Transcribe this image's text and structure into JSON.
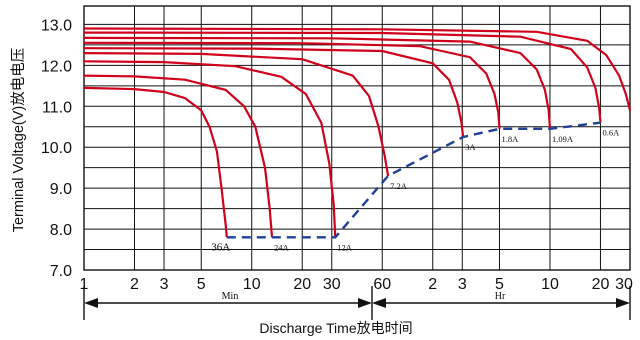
{
  "chart_data": {
    "type": "line",
    "title": "",
    "ylabel": "Terminal Voltage(V)放电电压",
    "xlabel": "Discharge Time放电时间",
    "ylim": [
      7.0,
      13.0
    ],
    "y_ticks": [
      "7.0",
      "8.0",
      "9.0",
      "10.0",
      "11.0",
      "12.0",
      "13.0"
    ],
    "x_scale": "log",
    "x_unit_minutes": "minutes",
    "x_ticks_minutes": [
      1,
      2,
      3,
      5,
      10,
      20,
      30,
      60,
      120,
      180,
      300,
      600,
      1200,
      1800
    ],
    "x_tick_labels": [
      "1",
      "2",
      "3",
      "5",
      "10",
      "20",
      "30",
      "60",
      "2",
      "3",
      "5",
      "10",
      "20",
      "30"
    ],
    "range_labels": {
      "min": "Min",
      "hr": "Hr"
    },
    "grid": true,
    "series": [
      {
        "name": "36A",
        "x_minutes": [
          1,
          2,
          3,
          4,
          5,
          5.6,
          6.2,
          6.6,
          7.0,
          7.1
        ],
        "y": [
          11.45,
          11.42,
          11.35,
          11.2,
          10.9,
          10.5,
          9.9,
          9.0,
          8.1,
          7.8
        ]
      },
      {
        "name": "24A",
        "x_minutes": [
          1,
          2,
          4,
          7,
          9,
          10.5,
          12,
          12.8,
          13.2
        ],
        "y": [
          11.75,
          11.73,
          11.65,
          11.4,
          11.0,
          10.5,
          9.5,
          8.5,
          7.8
        ]
      },
      {
        "name": "12A",
        "x_minutes": [
          1,
          3,
          8,
          15,
          21,
          26,
          29,
          30.8,
          31.5
        ],
        "y": [
          12.1,
          12.08,
          11.98,
          11.72,
          11.3,
          10.6,
          9.6,
          8.6,
          7.8
        ]
      },
      {
        "name": "7.2A",
        "x_minutes": [
          1,
          5,
          20,
          40,
          50,
          57,
          62,
          65
        ],
        "y": [
          12.3,
          12.28,
          12.15,
          11.75,
          11.25,
          10.5,
          9.8,
          9.3
        ]
      },
      {
        "name": "3A",
        "x_minutes": [
          1,
          10,
          60,
          120,
          150,
          168,
          178,
          182
        ],
        "y": [
          12.42,
          12.41,
          12.35,
          12.05,
          11.65,
          11.1,
          10.6,
          10.25
        ]
      },
      {
        "name": "1.8A",
        "x_minutes": [
          1,
          20,
          100,
          200,
          250,
          280,
          295,
          300
        ],
        "y": [
          12.55,
          12.54,
          12.47,
          12.2,
          11.8,
          11.3,
          10.85,
          10.45
        ]
      },
      {
        "name": "1.09A",
        "x_minutes": [
          1,
          30,
          200,
          400,
          500,
          560,
          590,
          600
        ],
        "y": [
          12.67,
          12.66,
          12.58,
          12.3,
          11.9,
          11.4,
          10.9,
          10.45
        ]
      },
      {
        "name": "0.6A",
        "x_minutes": [
          1,
          60,
          400,
          800,
          1000,
          1120,
          1180,
          1200
        ],
        "y": [
          12.8,
          12.79,
          12.7,
          12.4,
          11.95,
          11.45,
          10.95,
          10.6
        ]
      },
      {
        "name": "",
        "x_minutes": [
          1,
          60,
          500,
          1000,
          1300,
          1550,
          1700,
          1800
        ],
        "y": [
          12.9,
          12.88,
          12.82,
          12.6,
          12.25,
          11.75,
          11.3,
          10.9
        ]
      }
    ],
    "cutoff_line": {
      "x_minutes": [
        7.1,
        13.2,
        31.5,
        65,
        182,
        300,
        600,
        1200
      ],
      "y": [
        7.8,
        7.8,
        7.8,
        9.3,
        10.25,
        10.45,
        10.45,
        10.6
      ]
    }
  }
}
